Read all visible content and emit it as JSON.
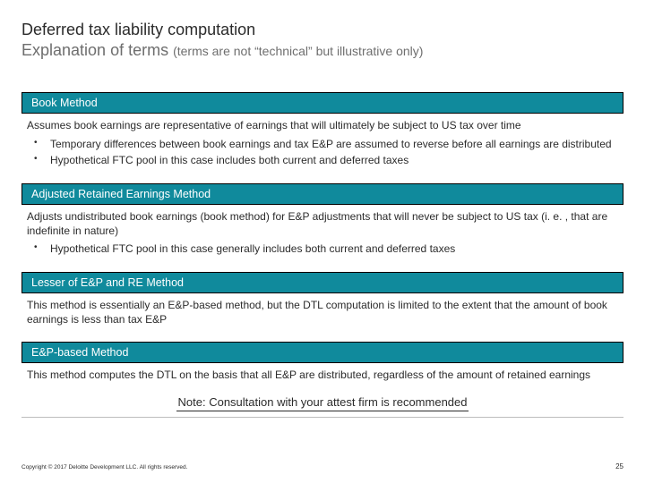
{
  "colors": {
    "header_bg": "#108a9c",
    "header_text": "#ffffff",
    "title_text": "#2b2b2b",
    "subtitle_text": "#6e6e6e",
    "body_text": "#2b2b2b",
    "border": "#000000",
    "divider": "#bdbdbd",
    "background": "#ffffff"
  },
  "typography": {
    "title_fontsize": 18,
    "subtitle_paren_fontsize": 14,
    "section_header_fontsize": 12.5,
    "body_fontsize": 12,
    "note_fontsize": 13,
    "copyright_fontsize": 6.5,
    "pagenum_fontsize": 8,
    "font_family": "Verdana"
  },
  "title": {
    "line1": "Deferred tax liability computation",
    "line2_main": "Explanation of terms ",
    "line2_paren": "(terms are not “technical” but illustrative only)"
  },
  "sections": [
    {
      "header": "Book Method",
      "body": "Assumes book earnings are representative of earnings that will ultimately be subject to US tax over time",
      "bullets": [
        "Temporary differences between book earnings and tax E&P are assumed to reverse before all earnings are distributed",
        "Hypothetical FTC pool in this case includes both current and deferred taxes"
      ]
    },
    {
      "header": "Adjusted Retained Earnings Method",
      "body": "Adjusts undistributed book earnings (book method) for E&P adjustments that will never be subject to US tax (i. e. , that are indefinite in nature)",
      "bullets": [
        "Hypothetical FTC pool in this case generally includes both current and deferred taxes"
      ]
    },
    {
      "header": "Lesser of E&P and RE Method",
      "body": "This method is essentially an E&P-based method, but the DTL computation is limited to the extent that the amount of book earnings is less than tax E&P",
      "bullets": []
    },
    {
      "header": "E&P-based Method",
      "body": "This method computes the DTL on the basis that all E&P are distributed, regardless of the amount of retained earnings",
      "bullets": []
    }
  ],
  "note": "Note: Consultation with your attest firm is recommended",
  "footer": {
    "copyright": "Copyright © 2017 Deloitte Development LLC. All rights reserved.",
    "page_number": "25"
  }
}
